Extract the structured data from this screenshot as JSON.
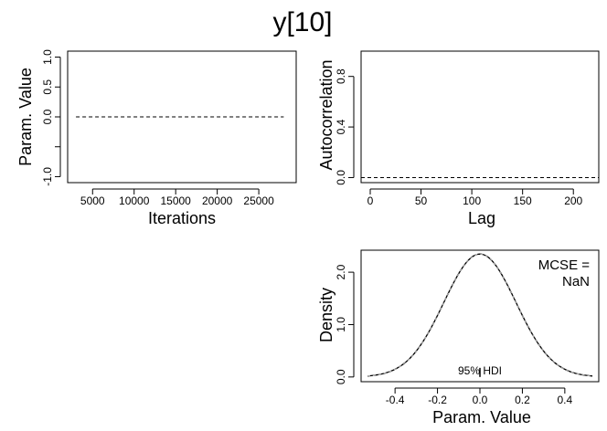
{
  "title": "y[10]",
  "chart_data": [
    {
      "type": "line",
      "panel": "trace",
      "xlabel": "Iterations",
      "ylabel": "Param. Value",
      "xlim": [
        2000,
        29500
      ],
      "ylim": [
        -1.1,
        1.1
      ],
      "xticks": [
        5000,
        10000,
        15000,
        20000,
        25000
      ],
      "yticks": [
        -1.0,
        -0.5,
        0.0,
        0.5,
        1.0
      ],
      "ytick_labels": [
        "-1.0",
        "",
        "0.0",
        "0.5",
        "1.0"
      ],
      "series": [
        {
          "x": [
            3000,
            28000
          ],
          "y": [
            0,
            0
          ],
          "style": "dashed"
        }
      ],
      "grid": false
    },
    {
      "type": "line",
      "panel": "autocorrelation",
      "xlabel": "Lag",
      "ylabel": "Autocorrelation",
      "xlim": [
        -9,
        225
      ],
      "ylim": [
        -0.04,
        1.0
      ],
      "xticks": [
        0,
        50,
        100,
        150,
        200
      ],
      "yticks": [
        0.0,
        0.4,
        0.8
      ],
      "ytick_labels": [
        "0.0",
        "0.4",
        "0.8"
      ],
      "series": [
        {
          "x": [
            -9,
            225
          ],
          "y": [
            0,
            0
          ],
          "style": "dashed"
        }
      ],
      "grid": false
    },
    {
      "type": "line",
      "panel": "density",
      "xlabel": "Param. Value",
      "ylabel": "Density",
      "xlim": [
        -0.56,
        0.56
      ],
      "ylim": [
        -0.09,
        2.42
      ],
      "xticks": [
        -0.4,
        -0.2,
        0.0,
        0.2,
        0.4
      ],
      "xtick_labels": [
        "-0.4",
        "-0.2",
        "0.0",
        "0.2",
        "0.4"
      ],
      "yticks": [
        0.0,
        1.0,
        2.0
      ],
      "ytick_labels": [
        "0.0",
        "1.0",
        "2.0"
      ],
      "density_curve": {
        "mean": 0.0,
        "sd": 0.17,
        "x_range": [
          -0.53,
          0.53
        ]
      },
      "hdi_label": "95% HDI",
      "hdi_value": 0.0,
      "annotation": [
        "MCSE =",
        "NaN"
      ],
      "grid": false
    }
  ]
}
